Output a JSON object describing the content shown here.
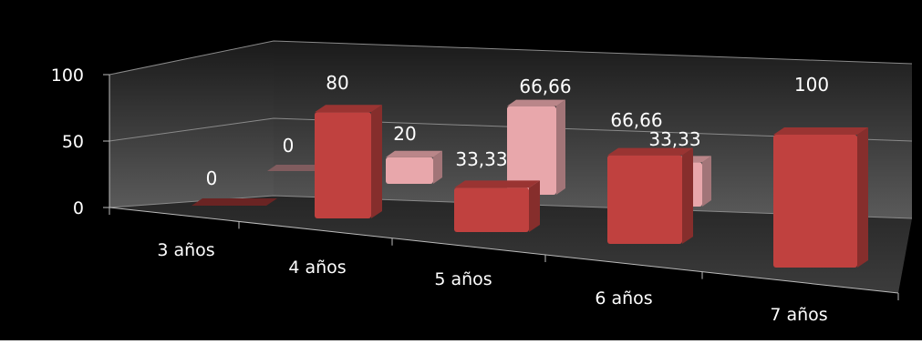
{
  "chart_data": {
    "type": "bar",
    "categories": [
      "3 años",
      "4 años",
      "5 años",
      "6 años",
      "7 años"
    ],
    "yticks": [
      "0",
      "50",
      "100"
    ],
    "ylim": [
      0,
      100
    ],
    "grid": true,
    "legend": "none",
    "series": [
      {
        "values": [
          0,
          80,
          33.33,
          66.66,
          100
        ],
        "labels": [
          "0",
          "80",
          "33,33",
          "66,66",
          "100"
        ],
        "color": "#c0413f"
      },
      {
        "values": [
          0,
          20,
          66.66,
          33.33,
          0
        ],
        "labels": [
          "0",
          "20",
          "66,66",
          "33,33",
          ""
        ],
        "color": "#e8a7ab"
      }
    ]
  }
}
